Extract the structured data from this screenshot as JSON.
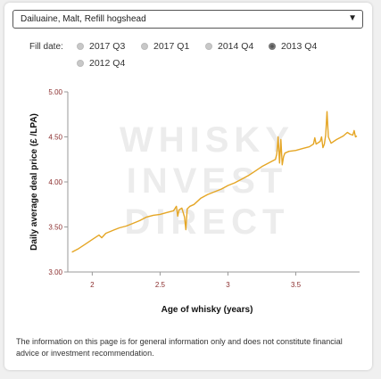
{
  "product_select": {
    "value": "Dailuaine,  Malt,  Refill hogshead",
    "arrow": "▼"
  },
  "fill_date": {
    "label": "Fill date:",
    "options": [
      {
        "label": "2017 Q3",
        "selected": false
      },
      {
        "label": "2017 Q1",
        "selected": false
      },
      {
        "label": "2014 Q4",
        "selected": false
      },
      {
        "label": "2013 Q4",
        "selected": true
      },
      {
        "label": "2012 Q4",
        "selected": false
      }
    ]
  },
  "watermark": [
    "WHISKY",
    "INVEST",
    "DIRECT"
  ],
  "disclaimer": "The information on this page is for general information only and does not constitute financial advice or investment recommendation.",
  "colors": {
    "line": "#e5a625",
    "axis": "#999999",
    "tick_text": "#8b2e2e",
    "accent": "#8b2e2e"
  },
  "chart_data": {
    "type": "line",
    "xlabel": "Age of whisky (years)",
    "ylabel": "Daily average deal price (£ /LPA)",
    "xlim": [
      1.82,
      3.97
    ],
    "ylim": [
      3.0,
      5.0
    ],
    "x_ticks": [
      2,
      2.5,
      3,
      3.5
    ],
    "x_tick_labels": [
      "2",
      "2.5",
      "3",
      "3.5"
    ],
    "y_ticks": [
      3.0,
      3.5,
      4.0,
      4.5,
      5.0
    ],
    "y_tick_labels": [
      "3.00",
      "3.50",
      "4.00",
      "4.50",
      "5.00"
    ],
    "grid": false,
    "series": [
      {
        "points": [
          [
            1.85,
            3.22
          ],
          [
            1.9,
            3.26
          ],
          [
            1.95,
            3.31
          ],
          [
            2.0,
            3.36
          ],
          [
            2.05,
            3.41
          ],
          [
            2.07,
            3.38
          ],
          [
            2.1,
            3.43
          ],
          [
            2.15,
            3.46
          ],
          [
            2.2,
            3.49
          ],
          [
            2.25,
            3.51
          ],
          [
            2.3,
            3.54
          ],
          [
            2.35,
            3.57
          ],
          [
            2.4,
            3.61
          ],
          [
            2.45,
            3.63
          ],
          [
            2.5,
            3.64
          ],
          [
            2.55,
            3.66
          ],
          [
            2.6,
            3.68
          ],
          [
            2.62,
            3.73
          ],
          [
            2.63,
            3.62
          ],
          [
            2.64,
            3.69
          ],
          [
            2.66,
            3.71
          ],
          [
            2.68,
            3.61
          ],
          [
            2.69,
            3.47
          ],
          [
            2.7,
            3.7
          ],
          [
            2.72,
            3.73
          ],
          [
            2.75,
            3.75
          ],
          [
            2.8,
            3.82
          ],
          [
            2.85,
            3.86
          ],
          [
            2.9,
            3.89
          ],
          [
            2.95,
            3.92
          ],
          [
            3.0,
            3.96
          ],
          [
            3.05,
            3.99
          ],
          [
            3.1,
            4.03
          ],
          [
            3.15,
            4.07
          ],
          [
            3.2,
            4.12
          ],
          [
            3.25,
            4.17
          ],
          [
            3.3,
            4.21
          ],
          [
            3.35,
            4.25
          ],
          [
            3.36,
            4.31
          ],
          [
            3.37,
            4.5
          ],
          [
            3.38,
            4.21
          ],
          [
            3.39,
            4.47
          ],
          [
            3.4,
            4.19
          ],
          [
            3.41,
            4.28
          ],
          [
            3.42,
            4.32
          ],
          [
            3.45,
            4.34
          ],
          [
            3.5,
            4.35
          ],
          [
            3.55,
            4.37
          ],
          [
            3.6,
            4.39
          ],
          [
            3.63,
            4.42
          ],
          [
            3.64,
            4.49
          ],
          [
            3.65,
            4.42
          ],
          [
            3.68,
            4.45
          ],
          [
            3.69,
            4.5
          ],
          [
            3.7,
            4.38
          ],
          [
            3.71,
            4.42
          ],
          [
            3.72,
            4.52
          ],
          [
            3.73,
            4.78
          ],
          [
            3.74,
            4.5
          ],
          [
            3.76,
            4.43
          ],
          [
            3.8,
            4.47
          ],
          [
            3.85,
            4.51
          ],
          [
            3.88,
            4.55
          ],
          [
            3.9,
            4.53
          ],
          [
            3.92,
            4.52
          ],
          [
            3.93,
            4.57
          ],
          [
            3.94,
            4.5
          ],
          [
            3.95,
            4.51
          ]
        ]
      }
    ]
  }
}
